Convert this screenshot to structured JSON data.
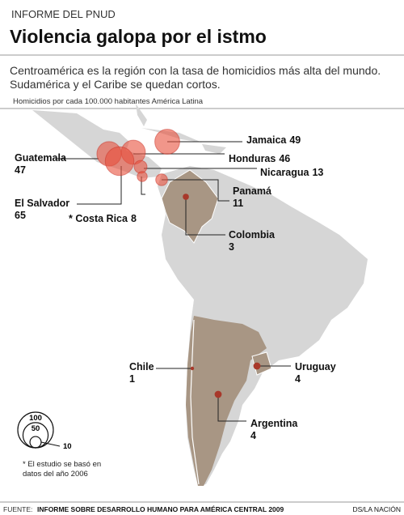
{
  "header": {
    "kicker": "INFORME DEL PNUD",
    "title": "Violencia galopa por el istmo",
    "subtitle": [
      "Centroamérica es la región con la tasa de homicidios más alta del mundo.",
      "Sudamérica y el Caribe se quedan cortos."
    ],
    "note": "Homicidios por cada 100.000 habitantes América Latina"
  },
  "countries": [
    {
      "name": "Jamaica",
      "value": 49
    },
    {
      "name": "Honduras",
      "value": 46
    },
    {
      "name": "Nicaragua",
      "value": 13
    },
    {
      "name": "Panamá",
      "value": 11
    },
    {
      "name": "Colombia",
      "value": 3
    },
    {
      "name": "Guatemala",
      "value": 47
    },
    {
      "name": "El Salvador",
      "value": 65
    },
    {
      "name": "* Costa Rica",
      "value": 8
    },
    {
      "name": "Chile",
      "value": 1
    },
    {
      "name": "Uruguay",
      "value": 4
    },
    {
      "name": "Argentina",
      "value": 4
    }
  ],
  "legend": {
    "values": [
      100,
      50,
      10
    ]
  },
  "footnote": [
    "* El estudio se  basó en",
    "datos del año 2006"
  ],
  "footer": {
    "label": "FUENTE:",
    "source": "INFORME SOBRE DESARROLLO HUMANO PARA AMÉRICA CENTRAL 2009",
    "credit": "DS/LA NACIÓN"
  }
}
